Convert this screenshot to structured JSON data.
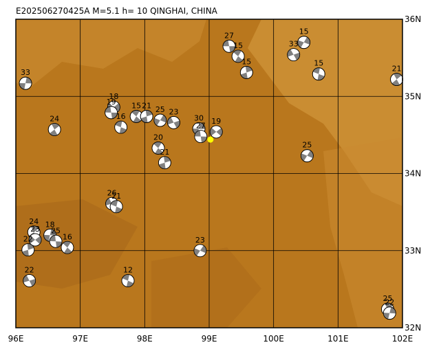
{
  "map": {
    "title": "E202506270425A M=5.1 h= 10 QINGHAI, CHINA",
    "xlim": [
      96,
      102
    ],
    "ylim": [
      32,
      36
    ],
    "xticks": [
      {
        "value": 96,
        "label": "96E"
      },
      {
        "value": 97,
        "label": "97E"
      },
      {
        "value": 98,
        "label": "98E"
      },
      {
        "value": 99,
        "label": "99E"
      },
      {
        "value": 100,
        "label": "100E"
      },
      {
        "value": 101,
        "label": "101E"
      },
      {
        "value": 102,
        "label": "102E"
      }
    ],
    "yticks": [
      {
        "value": 32,
        "label": "32N"
      },
      {
        "value": 33,
        "label": "33N"
      },
      {
        "value": 34,
        "label": "34N"
      },
      {
        "value": 35,
        "label": "35N"
      },
      {
        "value": 36,
        "label": "36N"
      }
    ],
    "mainshock": {
      "lon": 99.02,
      "lat": 34.44
    },
    "events": [
      {
        "lon": 99.31,
        "lat": 35.65,
        "label": "27"
      },
      {
        "lon": 99.45,
        "lat": 35.52,
        "label": "15"
      },
      {
        "lon": 99.58,
        "lat": 35.31,
        "label": "15"
      },
      {
        "lon": 100.47,
        "lat": 35.7,
        "label": "15"
      },
      {
        "lon": 100.31,
        "lat": 35.54,
        "label": "33"
      },
      {
        "lon": 100.7,
        "lat": 35.29,
        "label": "15"
      },
      {
        "lon": 101.91,
        "lat": 35.22,
        "label": "21"
      },
      {
        "lon": 96.15,
        "lat": 35.17,
        "label": "33"
      },
      {
        "lon": 97.52,
        "lat": 34.86,
        "label": "18"
      },
      {
        "lon": 97.48,
        "lat": 34.79,
        "label": "19"
      },
      {
        "lon": 97.87,
        "lat": 34.74,
        "label": "15"
      },
      {
        "lon": 98.03,
        "lat": 34.74,
        "label": "21"
      },
      {
        "lon": 98.24,
        "lat": 34.69,
        "label": "25"
      },
      {
        "lon": 98.45,
        "lat": 34.66,
        "label": "23"
      },
      {
        "lon": 97.63,
        "lat": 34.6,
        "label": "16"
      },
      {
        "lon": 96.6,
        "lat": 34.57,
        "label": "24"
      },
      {
        "lon": 98.84,
        "lat": 34.58,
        "label": "30"
      },
      {
        "lon": 99.11,
        "lat": 34.54,
        "label": "19"
      },
      {
        "lon": 98.87,
        "lat": 34.48,
        "label": "27"
      },
      {
        "lon": 98.21,
        "lat": 34.33,
        "label": "20"
      },
      {
        "lon": 98.31,
        "lat": 34.14,
        "label": "21"
      },
      {
        "lon": 100.52,
        "lat": 34.23,
        "label": "25"
      },
      {
        "lon": 97.49,
        "lat": 33.61,
        "label": "26"
      },
      {
        "lon": 97.56,
        "lat": 33.57,
        "label": "21"
      },
      {
        "lon": 96.28,
        "lat": 33.24,
        "label": "24"
      },
      {
        "lon": 96.53,
        "lat": 33.2,
        "label": "18"
      },
      {
        "lon": 96.3,
        "lat": 33.14,
        "label": "23"
      },
      {
        "lon": 96.62,
        "lat": 33.12,
        "label": "25"
      },
      {
        "lon": 96.8,
        "lat": 33.04,
        "label": "16"
      },
      {
        "lon": 96.19,
        "lat": 33.01,
        "label": "22"
      },
      {
        "lon": 98.86,
        "lat": 33.0,
        "label": "23"
      },
      {
        "lon": 96.21,
        "lat": 32.61,
        "label": "22"
      },
      {
        "lon": 97.74,
        "lat": 32.61,
        "label": "12"
      },
      {
        "lon": 101.77,
        "lat": 32.24,
        "label": "25"
      },
      {
        "lon": 101.8,
        "lat": 32.19,
        "label": "22"
      }
    ]
  }
}
